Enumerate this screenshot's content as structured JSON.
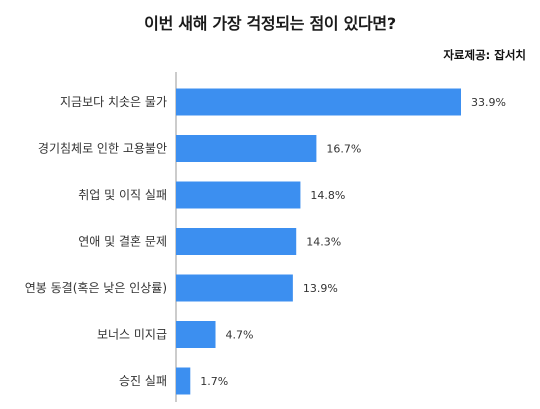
{
  "chart_data": {
    "type": "bar",
    "orientation": "horizontal",
    "title": "이번 새해 가장 걱정되는 점이 있다면?",
    "source": "자료제공: 잡서치",
    "categories": [
      "지금보다 치솟은 물가",
      "경기침체로 인한 고용불안",
      "취업 및 이직 실패",
      "연애 및 결혼 문제",
      "연봉 동결(혹은 낮은 인상률)",
      "보너스 미지급",
      "승진 실패"
    ],
    "values": [
      33.9,
      16.7,
      14.8,
      14.3,
      13.9,
      4.7,
      1.7
    ],
    "value_labels": [
      "33.9%",
      "16.7%",
      "14.8%",
      "14.3%",
      "13.9%",
      "4.7%",
      "1.7%"
    ],
    "unit": "%",
    "xlim": [
      0,
      33.9
    ],
    "grid": false,
    "legend": "none",
    "bar_color": "#3c8ff0",
    "axis_color": "#999999"
  }
}
